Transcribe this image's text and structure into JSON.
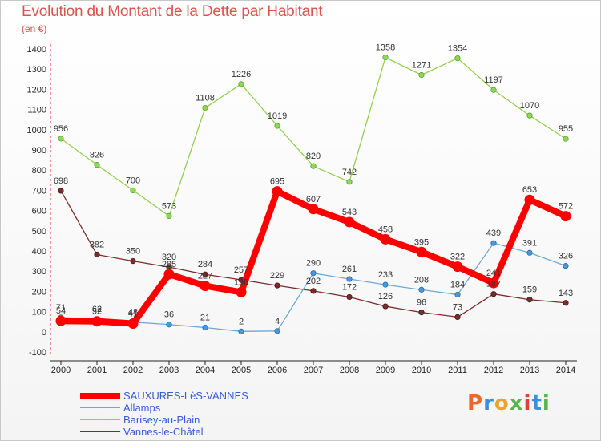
{
  "header": {
    "title": "Evolution du Montant de la Dette par Habitant",
    "unit": "(en €)"
  },
  "logo_text": "Proxiti",
  "chart_data": {
    "type": "line",
    "title": "Evolution du Montant de la Dette par Habitant",
    "subtitle": "(en €)",
    "x": [
      "2000",
      "2001",
      "2002",
      "2003",
      "2004",
      "2005",
      "2006",
      "2007",
      "2008",
      "2009",
      "2010",
      "2011",
      "2012",
      "2013",
      "2014"
    ],
    "yticks": [
      -100,
      0,
      100,
      200,
      300,
      400,
      500,
      600,
      700,
      800,
      900,
      1000,
      1100,
      1200,
      1300,
      1400
    ],
    "ylim": [
      -100,
      1400
    ],
    "grid": false,
    "legend_position": "bottom-left",
    "series": [
      {
        "name": "SAUXURES-LèS-VANNES",
        "color": "#ff0000",
        "values": [
          54,
          52,
          41,
          285,
          227,
          196,
          695,
          607,
          543,
          458,
          395,
          322,
          241,
          653,
          572
        ]
      },
      {
        "name": "Allamps",
        "color": "#6fa8d6",
        "values": [
          71,
          62,
          48,
          36,
          21,
          2,
          4,
          290,
          261,
          233,
          208,
          184,
          439,
          391,
          326
        ]
      },
      {
        "name": "Barisey-au-Plain",
        "color": "#92d050",
        "values": [
          956,
          826,
          700,
          573,
          1108,
          1226,
          1019,
          820,
          742,
          1358,
          1271,
          1354,
          1197,
          1070,
          955
        ]
      },
      {
        "name": "Vannes-le-Châtel",
        "color": "#7b2d2d",
        "values": [
          698,
          382,
          350,
          320,
          284,
          257,
          229,
          202,
          172,
          126,
          96,
          73,
          187,
          159,
          143
        ]
      }
    ],
    "labels": [
      {
        "s": 0,
        "i": 0,
        "t": "54"
      },
      {
        "s": 0,
        "i": 1,
        "t": "52"
      },
      {
        "s": 0,
        "i": 2,
        "t": "41"
      },
      {
        "s": 0,
        "i": 3,
        "t": "285"
      },
      {
        "s": 0,
        "i": 4,
        "t": "227"
      },
      {
        "s": 0,
        "i": 5,
        "t": "196"
      },
      {
        "s": 0,
        "i": 6,
        "t": "695"
      },
      {
        "s": 0,
        "i": 7,
        "t": "607"
      },
      {
        "s": 0,
        "i": 8,
        "t": "543"
      },
      {
        "s": 0,
        "i": 9,
        "t": "458"
      },
      {
        "s": 0,
        "i": 10,
        "t": "395"
      },
      {
        "s": 0,
        "i": 11,
        "t": "322"
      },
      {
        "s": 0,
        "i": 12,
        "t": "241"
      },
      {
        "s": 0,
        "i": 13,
        "t": "653"
      },
      {
        "s": 0,
        "i": 14,
        "t": "572"
      },
      {
        "s": 1,
        "i": 0,
        "t": "71"
      },
      {
        "s": 1,
        "i": 1,
        "t": "62"
      },
      {
        "s": 1,
        "i": 2,
        "t": "48"
      },
      {
        "s": 1,
        "i": 3,
        "t": "36"
      },
      {
        "s": 1,
        "i": 4,
        "t": "21"
      },
      {
        "s": 1,
        "i": 5,
        "t": "2"
      },
      {
        "s": 1,
        "i": 6,
        "t": "4"
      },
      {
        "s": 1,
        "i": 7,
        "t": "290"
      },
      {
        "s": 1,
        "i": 8,
        "t": "261"
      },
      {
        "s": 1,
        "i": 9,
        "t": "233"
      },
      {
        "s": 1,
        "i": 10,
        "t": "208"
      },
      {
        "s": 1,
        "i": 11,
        "t": "184"
      },
      {
        "s": 1,
        "i": 12,
        "t": "439"
      },
      {
        "s": 1,
        "i": 13,
        "t": "391"
      },
      {
        "s": 1,
        "i": 14,
        "t": "326"
      },
      {
        "s": 2,
        "i": 0,
        "t": "956"
      },
      {
        "s": 2,
        "i": 1,
        "t": "826"
      },
      {
        "s": 2,
        "i": 2,
        "t": "700"
      },
      {
        "s": 2,
        "i": 3,
        "t": "573"
      },
      {
        "s": 2,
        "i": 4,
        "t": "1108"
      },
      {
        "s": 2,
        "i": 5,
        "t": "1226"
      },
      {
        "s": 2,
        "i": 6,
        "t": "1019"
      },
      {
        "s": 2,
        "i": 7,
        "t": "820"
      },
      {
        "s": 2,
        "i": 8,
        "t": "742"
      },
      {
        "s": 2,
        "i": 9,
        "t": "1358"
      },
      {
        "s": 2,
        "i": 10,
        "t": "1271"
      },
      {
        "s": 2,
        "i": 11,
        "t": "1354"
      },
      {
        "s": 2,
        "i": 12,
        "t": "1197"
      },
      {
        "s": 2,
        "i": 13,
        "t": "1070"
      },
      {
        "s": 2,
        "i": 14,
        "t": "955"
      },
      {
        "s": 3,
        "i": 0,
        "t": "698"
      },
      {
        "s": 3,
        "i": 1,
        "t": "382"
      },
      {
        "s": 3,
        "i": 2,
        "t": "350"
      },
      {
        "s": 3,
        "i": 3,
        "t": "320"
      },
      {
        "s": 3,
        "i": 4,
        "t": "284"
      },
      {
        "s": 3,
        "i": 5,
        "t": "257"
      },
      {
        "s": 3,
        "i": 6,
        "t": "229"
      },
      {
        "s": 3,
        "i": 7,
        "t": "202"
      },
      {
        "s": 3,
        "i": 8,
        "t": "172"
      },
      {
        "s": 3,
        "i": 9,
        "t": "126"
      },
      {
        "s": 3,
        "i": 10,
        "t": "96"
      },
      {
        "s": 3,
        "i": 11,
        "t": "73"
      },
      {
        "s": 3,
        "i": 12,
        "t": "187"
      },
      {
        "s": 3,
        "i": 13,
        "t": "159"
      },
      {
        "s": 3,
        "i": 14,
        "t": "143"
      }
    ]
  }
}
